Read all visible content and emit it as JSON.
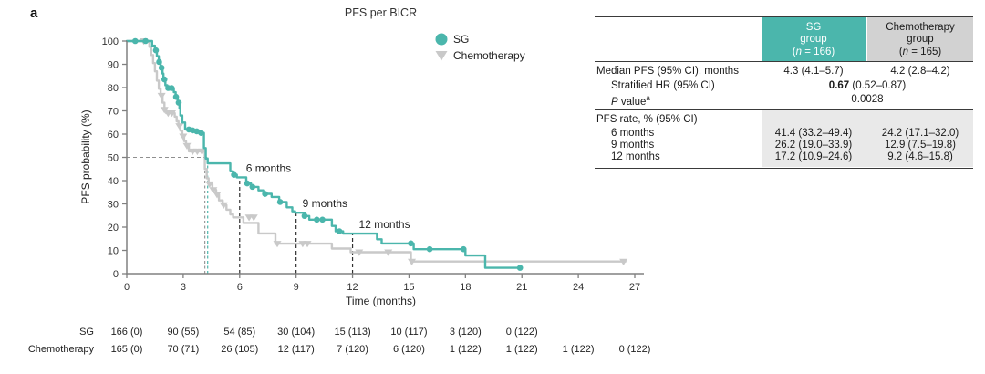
{
  "panel_label": "a",
  "chart_data": {
    "type": "line",
    "subtype": "kaplan-meier-step",
    "title": "PFS per BICR",
    "xlabel": "Time (months)",
    "ylabel": "PFS probability (%)",
    "xlim": [
      0,
      27
    ],
    "ylim": [
      0,
      100
    ],
    "xticks": [
      0,
      3,
      6,
      9,
      12,
      15,
      18,
      21,
      24,
      27
    ],
    "yticks": [
      0,
      10,
      20,
      30,
      40,
      50,
      60,
      70,
      80,
      90,
      100
    ],
    "grid": false,
    "legend_position": "inside-top-right",
    "colors": {
      "sg": "#4bb6ac",
      "chemo": "#c9c9c9",
      "axis": "#808080",
      "dashed": "#2f2f2f"
    },
    "series": [
      {
        "name": "SG",
        "color": "#4bb6ac",
        "marker": "circle",
        "steps": [
          [
            0,
            100
          ],
          [
            1.35,
            98
          ],
          [
            1.5,
            96
          ],
          [
            1.6,
            93.5
          ],
          [
            1.7,
            91
          ],
          [
            1.8,
            88.5
          ],
          [
            1.9,
            86
          ],
          [
            1.95,
            83.5
          ],
          [
            2.05,
            81
          ],
          [
            2.15,
            79.8
          ],
          [
            2.5,
            78
          ],
          [
            2.6,
            76
          ],
          [
            2.7,
            73.5
          ],
          [
            2.8,
            71
          ],
          [
            2.85,
            68
          ],
          [
            2.95,
            65
          ],
          [
            3.1,
            62
          ],
          [
            3.55,
            61.6
          ],
          [
            3.75,
            61.2
          ],
          [
            3.95,
            60.5
          ],
          [
            4.1,
            54
          ],
          [
            4.2,
            49.5
          ],
          [
            4.3,
            47.4
          ],
          [
            5.5,
            44
          ],
          [
            5.65,
            42.5
          ],
          [
            5.85,
            41.4
          ],
          [
            6.35,
            38.8
          ],
          [
            6.6,
            37.3
          ],
          [
            7.0,
            35.8
          ],
          [
            7.3,
            34.3
          ],
          [
            7.7,
            33
          ],
          [
            8.1,
            30.8
          ],
          [
            8.5,
            28.5
          ],
          [
            8.8,
            26.8
          ],
          [
            8.95,
            26.2
          ],
          [
            9.5,
            24.8
          ],
          [
            9.7,
            23.2
          ],
          [
            10.9,
            20.5
          ],
          [
            11.1,
            18.2
          ],
          [
            11.5,
            17.2
          ],
          [
            13.3,
            14.8
          ],
          [
            13.55,
            13
          ],
          [
            15.25,
            10.5
          ],
          [
            18.0,
            7.8
          ],
          [
            19.05,
            2.5
          ],
          [
            21.0,
            2.5
          ]
        ],
        "censors": [
          [
            0.45,
            100
          ],
          [
            1.0,
            100
          ],
          [
            1.55,
            96
          ],
          [
            1.72,
            91
          ],
          [
            1.85,
            88.5
          ],
          [
            2.0,
            83.5
          ],
          [
            2.2,
            79.8
          ],
          [
            2.38,
            79.8
          ],
          [
            2.62,
            76
          ],
          [
            2.76,
            73.5
          ],
          [
            3.3,
            62
          ],
          [
            3.5,
            61.6
          ],
          [
            3.72,
            61.2
          ],
          [
            3.95,
            60.5
          ],
          [
            5.7,
            42.5
          ],
          [
            6.4,
            38.8
          ],
          [
            6.68,
            37.3
          ],
          [
            7.35,
            34.3
          ],
          [
            8.15,
            30.8
          ],
          [
            9.45,
            24.8
          ],
          [
            10.1,
            23.2
          ],
          [
            10.4,
            23.2
          ],
          [
            11.3,
            18.2
          ],
          [
            15.1,
            13
          ],
          [
            16.1,
            10.5
          ],
          [
            17.9,
            10.5
          ],
          [
            20.9,
            2.5
          ]
        ]
      },
      {
        "name": "Chemotherapy",
        "color": "#c9c9c9",
        "marker": "triangle-down",
        "steps": [
          [
            0,
            100
          ],
          [
            1.2,
            97.5
          ],
          [
            1.3,
            94
          ],
          [
            1.4,
            90.5
          ],
          [
            1.5,
            87
          ],
          [
            1.6,
            83
          ],
          [
            1.7,
            79.5
          ],
          [
            1.8,
            76.5
          ],
          [
            1.9,
            73.5
          ],
          [
            2.0,
            70.5
          ],
          [
            2.1,
            69
          ],
          [
            2.55,
            67.5
          ],
          [
            2.65,
            65.5
          ],
          [
            2.75,
            63.5
          ],
          [
            2.85,
            61.5
          ],
          [
            2.95,
            59
          ],
          [
            3.05,
            57
          ],
          [
            3.15,
            55
          ],
          [
            3.3,
            52.6
          ],
          [
            4.15,
            45
          ],
          [
            4.25,
            41
          ],
          [
            4.35,
            38.5
          ],
          [
            4.55,
            36
          ],
          [
            4.75,
            34
          ],
          [
            4.9,
            31.5
          ],
          [
            5.1,
            29.5
          ],
          [
            5.3,
            27.5
          ],
          [
            5.5,
            25.5
          ],
          [
            5.65,
            24.2
          ],
          [
            6.2,
            21.8
          ],
          [
            7.0,
            17.3
          ],
          [
            7.9,
            12.9
          ],
          [
            10.9,
            10.8
          ],
          [
            11.9,
            9.2
          ],
          [
            15.1,
            5.2
          ],
          [
            26.5,
            5.2
          ]
        ],
        "censors": [
          [
            0.9,
            100
          ],
          [
            1.85,
            76.5
          ],
          [
            2.0,
            70.5
          ],
          [
            2.2,
            69
          ],
          [
            2.4,
            69
          ],
          [
            2.8,
            63.5
          ],
          [
            3.0,
            59
          ],
          [
            3.2,
            55
          ],
          [
            3.5,
            52.6
          ],
          [
            3.75,
            52.6
          ],
          [
            4.0,
            52.6
          ],
          [
            4.4,
            38.5
          ],
          [
            4.6,
            36
          ],
          [
            4.8,
            34
          ],
          [
            5.15,
            29.5
          ],
          [
            6.5,
            24.2
          ],
          [
            6.75,
            24.2
          ],
          [
            8.0,
            12.9
          ],
          [
            9.35,
            12.9
          ],
          [
            9.6,
            12.9
          ],
          [
            12.35,
            9.2
          ],
          [
            13.9,
            9.2
          ],
          [
            15.15,
            5.2
          ],
          [
            26.4,
            5.2
          ]
        ]
      }
    ],
    "medians": {
      "y": 50,
      "sg_x": 4.3,
      "chemo_x": 4.15
    },
    "milestones": [
      {
        "x": 6,
        "y": 41.4,
        "label": "6 months"
      },
      {
        "x": 9,
        "y": 26.2,
        "label": "9 months"
      },
      {
        "x": 12,
        "y": 17.2,
        "label": "12 months"
      }
    ],
    "risk_table": {
      "rows": [
        {
          "label": "SG",
          "counts": [
            "166 (0)",
            "90 (55)",
            "54 (85)",
            "30 (104)",
            "15 (113)",
            "10 (117)",
            "3 (120)",
            "0 (122)"
          ]
        },
        {
          "label": "Chemotherapy",
          "counts": [
            "165 (0)",
            "70 (71)",
            "26 (105)",
            "12 (117)",
            "7 (120)",
            "6 (120)",
            "1 (122)",
            "1 (122)",
            "1 (122)",
            "0 (122)"
          ]
        }
      ]
    }
  },
  "stats_table": {
    "header": {
      "sg": {
        "line1": "SG",
        "line2": "group",
        "n_open": "(",
        "n_symbol": "n",
        "n_rest": " = 166)"
      },
      "chemo": {
        "line1": "Chemotherapy",
        "line2": "group",
        "n_open": "(",
        "n_symbol": "n",
        "n_rest": " = 165)"
      }
    },
    "rows": {
      "median": {
        "label": "Median PFS (95% CI), months",
        "sg": "4.3 (4.1–5.7)",
        "chemo": "4.2 (2.8–4.2)"
      },
      "hr": {
        "label": "Stratified HR (95% CI)",
        "bold": "0.67",
        "rest": " (0.52–0.87)"
      },
      "pvalue": {
        "label_italic": "P",
        "label_rest": " value",
        "sup": "a",
        "value": "0.0028"
      }
    },
    "rate_section": {
      "header": "PFS rate, % (95% CI)",
      "rows": [
        {
          "label": "6 months",
          "sg": "41.4 (33.2–49.4)",
          "chemo": "24.2 (17.1–32.0)"
        },
        {
          "label": "9 months",
          "sg": "26.2 (19.0–33.9)",
          "chemo": "12.9 (7.5–19.8)"
        },
        {
          "label": "12 months",
          "sg": "17.2 (10.9–24.6)",
          "chemo": "9.2 (4.6–15.8)"
        }
      ]
    }
  }
}
